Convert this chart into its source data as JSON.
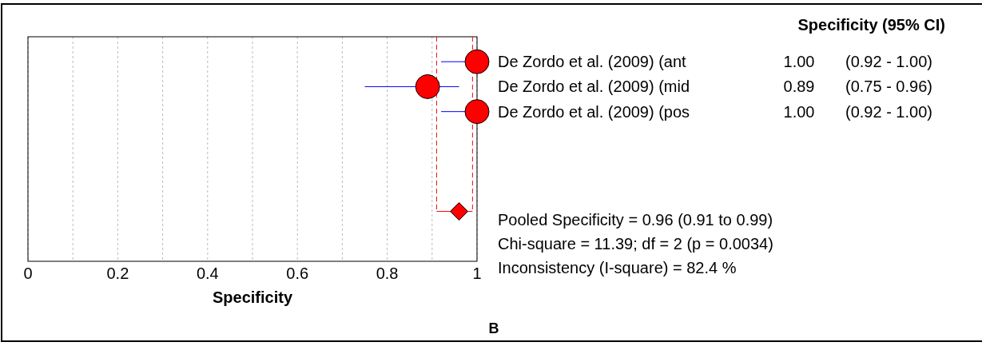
{
  "chart_data": {
    "type": "scatter",
    "orientation": "horizontal",
    "xlabel": "Specificity",
    "categories": [
      "De Zordo et al. (2009) (ant",
      "De Zordo et al. (2009) (mid",
      "De Zordo et al. (2009) (pos",
      null,
      null,
      null,
      null
    ],
    "series": [
      {
        "color": "#ff0000",
        "marker": "circle",
        "values": [
          1.0,
          0.89,
          1.0,
          null,
          null,
          null,
          null
        ],
        "errors": [
          [
            0.92,
            1.0
          ],
          [
            0.75,
            0.96
          ],
          [
            0.92,
            1.0
          ],
          null,
          null,
          null,
          null
        ],
        "value_labels": [
          "1.00",
          "0.89",
          "1.00",
          null,
          null,
          null,
          null
        ]
      },
      {
        "color": "#ff0000",
        "marker": "diamond",
        "values": [
          null,
          null,
          null,
          null,
          null,
          null,
          0.96
        ],
        "errors": [
          null,
          null,
          null,
          null,
          null,
          null,
          [
            0.91,
            0.99
          ]
        ]
      }
    ],
    "xlim": [
      0,
      1
    ],
    "xticks": [
      0,
      {
        "value": 0.1,
        "label": null
      },
      0.2,
      {
        "value": 0.3,
        "label": null
      },
      0.4,
      {
        "value": 0.5,
        "label": null
      },
      0.6,
      {
        "value": 0.7,
        "label": null
      },
      0.8,
      {
        "value": 0.9,
        "label": null
      },
      1
    ],
    "grid": "x",
    "ref_lines": [
      {
        "axis": "x",
        "value": 0.91,
        "color": "#ff0000",
        "line_style": "dashed"
      },
      {
        "axis": "x",
        "value": 0.99,
        "color": "#ff0000",
        "line_style": "dashed"
      }
    ],
    "annotations": [
      "Specificity (95% CI)",
      "(0.92 - 1.00)",
      "(0.75 - 0.96)",
      "(0.92 - 1.00)",
      "Pooled Specificity = 0.96 (0.91 to 0.99)",
      "Chi-square = 11.39; df =  2 (p = 0.0034)",
      "Inconsistency (I-square) = 82.4 %",
      "B"
    ]
  }
}
